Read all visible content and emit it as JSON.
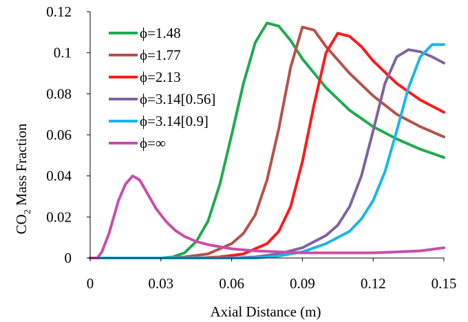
{
  "chart_data": {
    "type": "line",
    "title": "",
    "xlabel": "Axial Distance (m)",
    "ylabel_parts": [
      "CO",
      "2",
      " Mass Fraction"
    ],
    "xlim": [
      0,
      0.15
    ],
    "ylim": [
      0,
      0.12
    ],
    "x_ticks": [
      "0",
      "0.03",
      "0.06",
      "0.09",
      "0.12",
      "0.15"
    ],
    "y_ticks": [
      "0",
      "0.02",
      "0.04",
      "0.06",
      "0.08",
      "0.1",
      "0.12"
    ],
    "grid": false,
    "legend_position": "top-left",
    "series": [
      {
        "name": "ϕ=1.48",
        "color": "#1faa4f",
        "points": [
          [
            0,
            0
          ],
          [
            0.03,
            0
          ],
          [
            0.035,
            0.0005
          ],
          [
            0.04,
            0.0025
          ],
          [
            0.045,
            0.008
          ],
          [
            0.05,
            0.018
          ],
          [
            0.055,
            0.036
          ],
          [
            0.06,
            0.06
          ],
          [
            0.065,
            0.085
          ],
          [
            0.07,
            0.105
          ],
          [
            0.075,
            0.1145
          ],
          [
            0.08,
            0.113
          ],
          [
            0.085,
            0.106
          ],
          [
            0.09,
            0.097
          ],
          [
            0.1,
            0.083
          ],
          [
            0.11,
            0.072
          ],
          [
            0.12,
            0.064
          ],
          [
            0.13,
            0.058
          ],
          [
            0.14,
            0.053
          ],
          [
            0.15,
            0.049
          ]
        ]
      },
      {
        "name": "ϕ=1.77",
        "color": "#b5524a",
        "points": [
          [
            0,
            0
          ],
          [
            0.035,
            0
          ],
          [
            0.04,
            0.0005
          ],
          [
            0.05,
            0.002
          ],
          [
            0.06,
            0.007
          ],
          [
            0.065,
            0.012
          ],
          [
            0.07,
            0.021
          ],
          [
            0.075,
            0.038
          ],
          [
            0.08,
            0.063
          ],
          [
            0.085,
            0.093
          ],
          [
            0.09,
            0.1125
          ],
          [
            0.095,
            0.111
          ],
          [
            0.1,
            0.103
          ],
          [
            0.11,
            0.09
          ],
          [
            0.12,
            0.079
          ],
          [
            0.13,
            0.07
          ],
          [
            0.14,
            0.064
          ],
          [
            0.15,
            0.059
          ]
        ]
      },
      {
        "name": "ϕ=2.13",
        "color": "#ff1a1a",
        "points": [
          [
            0,
            0
          ],
          [
            0.045,
            0
          ],
          [
            0.055,
            0.0005
          ],
          [
            0.065,
            0.002
          ],
          [
            0.075,
            0.007
          ],
          [
            0.08,
            0.013
          ],
          [
            0.085,
            0.025
          ],
          [
            0.09,
            0.047
          ],
          [
            0.095,
            0.075
          ],
          [
            0.1,
            0.1
          ],
          [
            0.105,
            0.1095
          ],
          [
            0.11,
            0.108
          ],
          [
            0.115,
            0.103
          ],
          [
            0.12,
            0.096
          ],
          [
            0.13,
            0.085
          ],
          [
            0.14,
            0.077
          ],
          [
            0.15,
            0.071
          ]
        ]
      },
      {
        "name": "ϕ=3.14[0.56]",
        "color": "#7f63a2",
        "points": [
          [
            0,
            0
          ],
          [
            0.06,
            0
          ],
          [
            0.07,
            0.0005
          ],
          [
            0.08,
            0.002
          ],
          [
            0.09,
            0.005
          ],
          [
            0.1,
            0.011
          ],
          [
            0.105,
            0.016
          ],
          [
            0.11,
            0.025
          ],
          [
            0.115,
            0.04
          ],
          [
            0.12,
            0.062
          ],
          [
            0.125,
            0.085
          ],
          [
            0.13,
            0.098
          ],
          [
            0.135,
            0.1015
          ],
          [
            0.14,
            0.1005
          ],
          [
            0.145,
            0.098
          ],
          [
            0.15,
            0.095
          ]
        ]
      },
      {
        "name": "ϕ=3.14[0.9]",
        "color": "#1ab6eb",
        "points": [
          [
            0,
            0
          ],
          [
            0.07,
            0
          ],
          [
            0.08,
            0.001
          ],
          [
            0.09,
            0.003
          ],
          [
            0.1,
            0.007
          ],
          [
            0.11,
            0.013
          ],
          [
            0.115,
            0.019
          ],
          [
            0.12,
            0.028
          ],
          [
            0.125,
            0.042
          ],
          [
            0.13,
            0.062
          ],
          [
            0.135,
            0.083
          ],
          [
            0.14,
            0.098
          ],
          [
            0.145,
            0.104
          ],
          [
            0.15,
            0.104
          ]
        ]
      },
      {
        "name": "ϕ=∞",
        "color": "#c84fa8",
        "points": [
          [
            0,
            0
          ],
          [
            0.003,
            0
          ],
          [
            0.005,
            0.003
          ],
          [
            0.008,
            0.012
          ],
          [
            0.01,
            0.02
          ],
          [
            0.012,
            0.028
          ],
          [
            0.015,
            0.036
          ],
          [
            0.018,
            0.04
          ],
          [
            0.021,
            0.038
          ],
          [
            0.024,
            0.032
          ],
          [
            0.028,
            0.024
          ],
          [
            0.032,
            0.018
          ],
          [
            0.036,
            0.0135
          ],
          [
            0.04,
            0.0105
          ],
          [
            0.045,
            0.008
          ],
          [
            0.05,
            0.0065
          ],
          [
            0.055,
            0.0055
          ],
          [
            0.06,
            0.0045
          ],
          [
            0.07,
            0.0035
          ],
          [
            0.08,
            0.003
          ],
          [
            0.09,
            0.0025
          ],
          [
            0.1,
            0.0025
          ],
          [
            0.11,
            0.0025
          ],
          [
            0.12,
            0.0025
          ],
          [
            0.13,
            0.003
          ],
          [
            0.14,
            0.0035
          ],
          [
            0.15,
            0.005
          ]
        ]
      }
    ]
  }
}
